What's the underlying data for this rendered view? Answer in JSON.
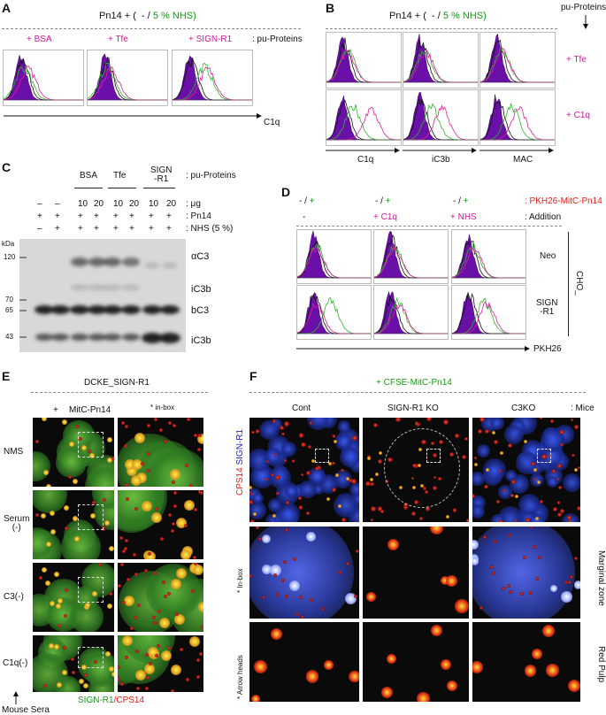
{
  "panel_a": {
    "label": "A",
    "header_open": "Pn14 + (",
    "header_minus": "- /",
    "header_nhs": "5 % NHS)",
    "proteins": [
      "+ BSA",
      "+ Tfe",
      "+ SIGN-R1"
    ],
    "proteins_label": ": pu-Proteins",
    "axis": "C1q"
  },
  "panel_b": {
    "label": "B",
    "header_open": "Pn14 + (",
    "header_minus": "- /",
    "header_nhs": "5 % NHS)",
    "proteins_label": "pu-Proteins",
    "rows": [
      "+ Tfe",
      "+ C1q"
    ],
    "axes": [
      "C1q",
      "iC3b",
      "MAC"
    ]
  },
  "panel_c": {
    "label": "C",
    "groups": [
      "BSA",
      "Tfe",
      "SIGN\n-R1"
    ],
    "groups_label": ": pu-Proteins",
    "conditions": [
      {
        "values": [
          "–",
          "–",
          "10",
          "20",
          "10",
          "20",
          "10",
          "20"
        ],
        "label": ": μg"
      },
      {
        "values": [
          "+",
          "+",
          "+",
          "+",
          "+",
          "+",
          "+",
          "+"
        ],
        "label": ": Pn14"
      },
      {
        "values": [
          "–",
          "+",
          "+",
          "+",
          "+",
          "+",
          "+",
          "+"
        ],
        "label": ": NHS (5 %)"
      }
    ],
    "kda_label": "kDa",
    "markers": [
      "120",
      "70",
      "65",
      "43"
    ],
    "bands": [
      "αC3",
      "iC3b",
      "bC3",
      "iC3b"
    ]
  },
  "panel_d": {
    "label": "D",
    "pkh_toggles": [
      {
        "minus": "- /",
        "plus": "+"
      },
      {
        "minus": "- /",
        "plus": "+"
      },
      {
        "minus": "- /",
        "plus": "+"
      }
    ],
    "pkh_label": ": PKH26-MitC-Pn14",
    "additions": [
      "-",
      "+ C1q",
      "+ NHS"
    ],
    "additions_label": ": Addition",
    "rows": [
      "Neo",
      "SIGN\n-R1"
    ],
    "cell_line": "CHO_",
    "axis": "PKH26"
  },
  "panel_e": {
    "label": "E",
    "title": "DCKE_SIGN-R1",
    "plus": "+",
    "treatment": "MitC-Pn14",
    "inbox": "* in-box",
    "rows": [
      "NMS",
      "Serum\n(-)",
      "C3(-)",
      "C1q(-)"
    ],
    "stain_green": "SIGN-R1",
    "stain_red": "/CPS14",
    "axis": "Mouse Sera"
  },
  "panel_f": {
    "label": "F",
    "title": "+ CFSE-MitC-Pn14",
    "columns": [
      "Cont",
      "SIGN-R1 KO",
      "C3KO"
    ],
    "columns_label": ": Mice",
    "stain_red": "CPS14",
    "stain_blue": "SIGN-R1",
    "rows_left": [
      "* In-box",
      "* Arrow heads"
    ],
    "rows_right": [
      "Marginal\nzone",
      "Red\nPulp"
    ]
  }
}
